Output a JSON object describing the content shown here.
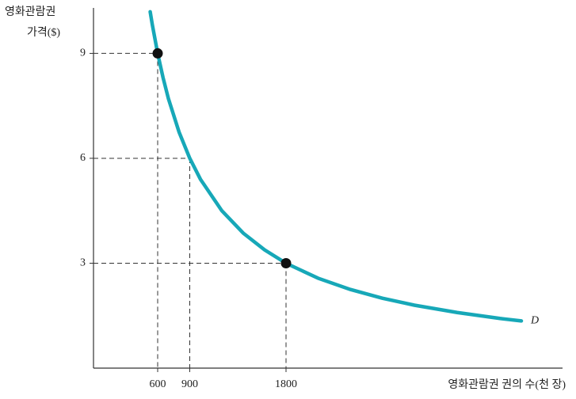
{
  "chart_data": {
    "type": "line",
    "ylabel": [
      "영화관람권",
      "가격($)"
    ],
    "xlabel": "영화관람권 권의 수(천 장)",
    "x": [
      530,
      550,
      600,
      650,
      700,
      800,
      900,
      1000,
      1200,
      1400,
      1600,
      1800,
      2100,
      2400,
      2700,
      3000,
      3400,
      3800,
      4000
    ],
    "series": [
      {
        "name": "D",
        "color": "#17a8b8",
        "values": [
          10.19,
          9.82,
          9,
          8.31,
          7.71,
          6.75,
          6,
          5.4,
          4.5,
          3.86,
          3.38,
          3,
          2.57,
          2.25,
          2,
          1.8,
          1.59,
          1.42,
          1.35
        ]
      }
    ],
    "points": [
      {
        "x": 600,
        "y": 9
      },
      {
        "x": 1800,
        "y": 3
      }
    ],
    "guides": [
      {
        "x": 600,
        "y": 9
      },
      {
        "x": 900,
        "y": 6
      },
      {
        "x": 1800,
        "y": 3
      }
    ],
    "xlim": [
      0,
      4385
    ],
    "ylim": [
      0,
      10.3
    ],
    "xticks": [
      600,
      900,
      1800
    ],
    "yticks": [
      3,
      6,
      9
    ]
  }
}
